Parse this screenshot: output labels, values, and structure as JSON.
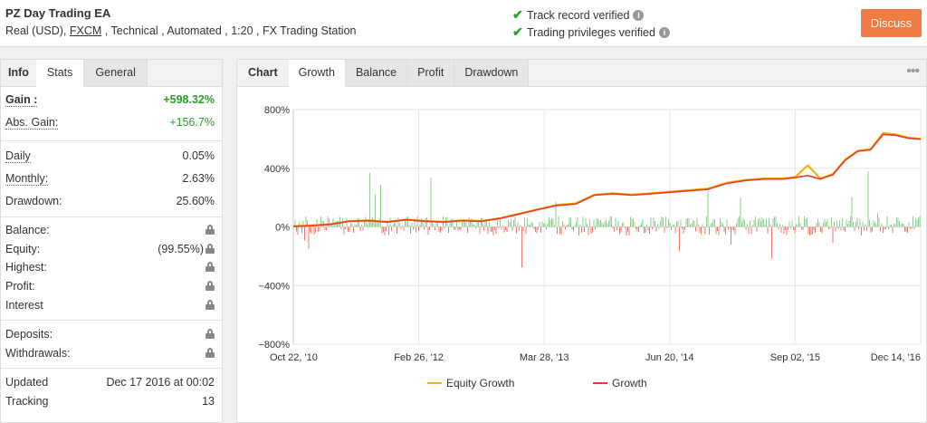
{
  "header": {
    "title": "PZ Day Trading EA",
    "subtitle_prefix": "Real (USD),",
    "broker": "FXCM",
    "subtitle_suffix": ", Technical , Automated , 1:20 , FX Trading Station",
    "verifications": [
      "Track record verified",
      "Trading privileges verified"
    ],
    "discuss_label": "Discuss"
  },
  "left_tabs": [
    "Info",
    "Stats",
    "General"
  ],
  "stats": {
    "gain": {
      "label": "Gain :",
      "value": "+598.32%"
    },
    "abs_gain": {
      "label": "Abs. Gain:",
      "value": "+156.7%"
    },
    "daily": {
      "label": "Daily",
      "value": "0.05%"
    },
    "monthly": {
      "label": "Monthly:",
      "value": "2.63%"
    },
    "drawdown": {
      "label": "Drawdown:",
      "value": "25.60%"
    },
    "balance": {
      "label": "Balance:"
    },
    "equity": {
      "label": "Equity:",
      "value": "(99.55%)"
    },
    "highest": {
      "label": "Highest:"
    },
    "profit": {
      "label": "Profit:"
    },
    "interest": {
      "label": "Interest"
    },
    "deposits": {
      "label": "Deposits:"
    },
    "withdrawals": {
      "label": "Withdrawals:"
    },
    "updated": {
      "label": "Updated",
      "value": "Dec 17 2016 at 00:02"
    },
    "tracking": {
      "label": "Tracking",
      "value": "13"
    }
  },
  "chart_tabs": [
    "Chart",
    "Growth",
    "Balance",
    "Profit",
    "Drawdown"
  ],
  "colors": {
    "equity": "#f5b300",
    "growth": "#e8392a",
    "bars_up": "#5cb85c",
    "bars_down": "#e8392a",
    "accent": "#f07c45"
  },
  "chart_data": {
    "type": "line",
    "x_ticks": [
      "Oct 22, '10",
      "Feb 26, '12",
      "Mar 28, '13",
      "Jun 20, '14",
      "Sep 02, '15",
      "Dec 14, '16"
    ],
    "y_ticks": [
      "800%",
      "400%",
      "0%",
      "−400%",
      "−800%"
    ],
    "ylim": [
      -800,
      800
    ],
    "xlim": [
      0,
      1
    ],
    "grid": true,
    "legend_position": "bottom",
    "series": [
      {
        "name": "Equity Growth",
        "color": "#f5b300",
        "x": [
          0,
          0.03,
          0.06,
          0.09,
          0.12,
          0.15,
          0.18,
          0.21,
          0.24,
          0.27,
          0.3,
          0.33,
          0.36,
          0.39,
          0.42,
          0.45,
          0.48,
          0.51,
          0.54,
          0.57,
          0.6,
          0.63,
          0.66,
          0.69,
          0.72,
          0.75,
          0.78,
          0.8,
          0.82,
          0.84,
          0.86,
          0.88,
          0.9,
          0.92,
          0.94,
          0.96,
          0.98,
          1.0
        ],
        "y": [
          5,
          10,
          20,
          40,
          45,
          35,
          50,
          40,
          35,
          45,
          40,
          60,
          90,
          120,
          150,
          160,
          220,
          230,
          220,
          230,
          240,
          250,
          260,
          300,
          320,
          330,
          330,
          340,
          420,
          330,
          360,
          460,
          520,
          530,
          640,
          630,
          610,
          600
        ]
      },
      {
        "name": "Growth",
        "color": "#e8392a",
        "x": [
          0,
          0.03,
          0.06,
          0.09,
          0.12,
          0.15,
          0.18,
          0.21,
          0.24,
          0.27,
          0.3,
          0.33,
          0.36,
          0.39,
          0.42,
          0.45,
          0.48,
          0.51,
          0.54,
          0.57,
          0.6,
          0.63,
          0.66,
          0.69,
          0.72,
          0.75,
          0.78,
          0.8,
          0.82,
          0.84,
          0.86,
          0.88,
          0.9,
          0.92,
          0.94,
          0.96,
          0.98,
          1.0
        ],
        "y": [
          4,
          8,
          18,
          38,
          42,
          33,
          48,
          38,
          33,
          42,
          38,
          58,
          88,
          118,
          146,
          156,
          216,
          226,
          216,
          226,
          236,
          246,
          256,
          296,
          316,
          326,
          326,
          336,
          350,
          326,
          356,
          456,
          516,
          526,
          630,
          625,
          605,
          598
        ]
      }
    ]
  }
}
